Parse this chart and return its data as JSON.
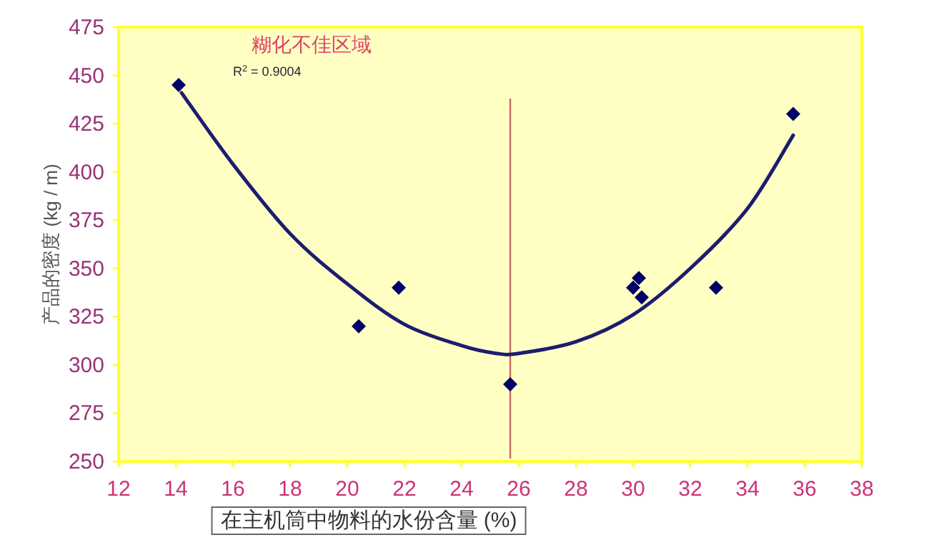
{
  "chart_data": {
    "type": "scatter",
    "xlabel": "在主机筒中物料的水份含量 (%)",
    "ylabel": "产品的密度 (kg / m)",
    "xlim": [
      12,
      38
    ],
    "xticks": [
      12,
      14,
      16,
      18,
      20,
      22,
      24,
      26,
      28,
      30,
      32,
      34,
      36,
      38
    ],
    "ylim": [
      250,
      475
    ],
    "yticks": [
      250,
      275,
      300,
      325,
      350,
      375,
      400,
      425,
      450,
      475
    ],
    "series": [
      {
        "color": "#000066",
        "marker": "diamond",
        "x": [
          14.1,
          20.4,
          21.8,
          25.7,
          30.0,
          30.2,
          30.3,
          32.9,
          35.6
        ],
        "values": [
          445,
          320,
          340,
          290,
          340,
          345,
          335,
          340,
          430
        ]
      },
      {
        "type": "line",
        "color": "#1c1c70",
        "marker": "none",
        "x": [
          14.2,
          16,
          18,
          20,
          22,
          24,
          25.2,
          26,
          28,
          30,
          32,
          34,
          35.6
        ],
        "values": [
          441,
          404,
          368,
          342,
          321,
          310,
          306,
          306,
          312,
          326,
          350,
          381,
          419
        ]
      }
    ],
    "ref_lines": [
      {
        "axis": "x",
        "value": 25.7,
        "label": "糊化不佳区域",
        "color": "#cc6666"
      }
    ],
    "annotations": [
      "R$^{2}$ = 0.9004"
    ]
  }
}
